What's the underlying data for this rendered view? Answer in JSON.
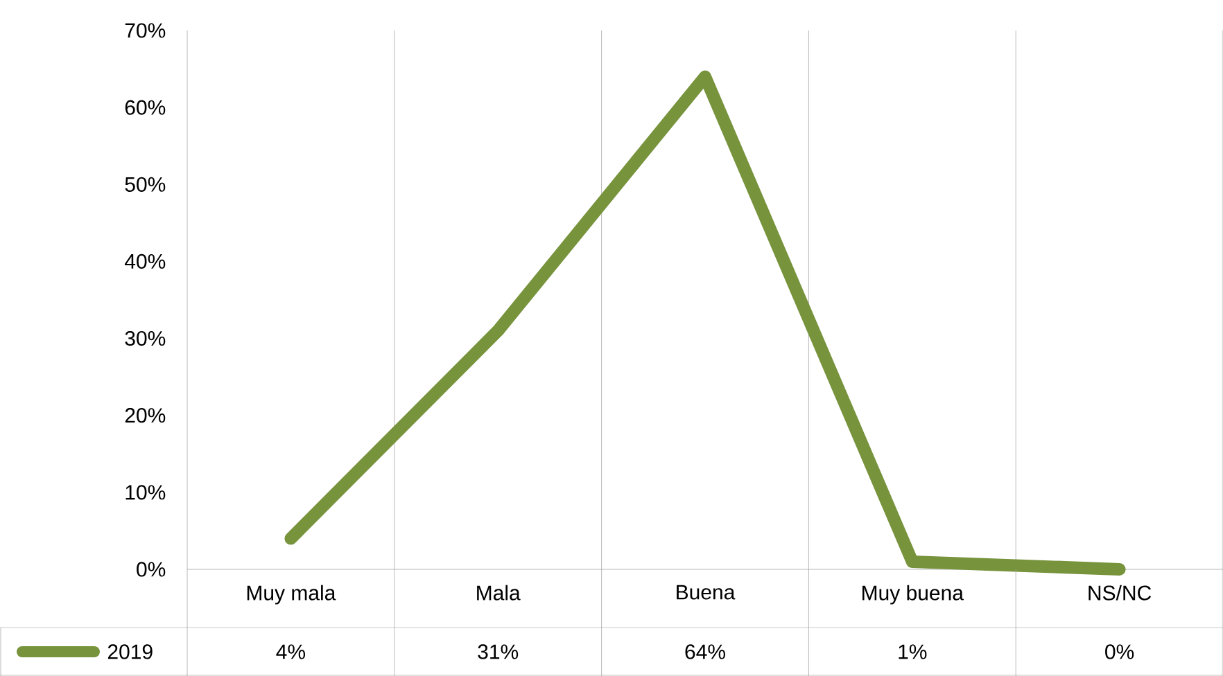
{
  "chart_data": {
    "type": "line",
    "categories": [
      "Muy  mala",
      "Mala",
      "Buena",
      "Muy buena",
      "NS/NC"
    ],
    "series": [
      {
        "name": "2019",
        "color": "#77933c",
        "values": [
          4,
          31,
          64,
          1,
          0
        ],
        "value_labels": [
          "4%",
          "31%",
          "64%",
          "1%",
          "0%"
        ]
      }
    ],
    "ylim": [
      0,
      70
    ],
    "yticks": [
      {
        "value": 0,
        "label": "0%"
      },
      {
        "value": 10,
        "label": "10%"
      },
      {
        "value": 20,
        "label": "20%"
      },
      {
        "value": 30,
        "label": "30%"
      },
      {
        "value": 40,
        "label": "40%"
      },
      {
        "value": 50,
        "label": "50%"
      },
      {
        "value": 60,
        "label": "60%"
      },
      {
        "value": 70,
        "label": "70%"
      }
    ],
    "grid": "x",
    "legend": "bottom",
    "line_style": "solid"
  }
}
